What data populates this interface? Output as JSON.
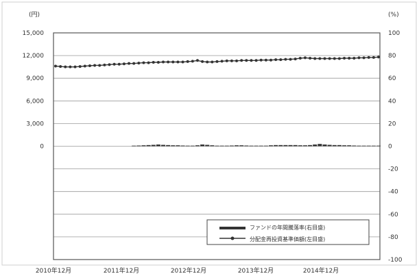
{
  "chart_data": {
    "type": "line",
    "left_axis_unit": "(円)",
    "right_axis_unit": "(%)",
    "left_axis": {
      "ylim": [
        -15000,
        15000
      ],
      "tick_labels": [
        "15,000",
        "12,000",
        "9,000",
        "6,000",
        "3,000",
        "0"
      ]
    },
    "right_axis": {
      "ylim": [
        -100,
        100
      ],
      "tick_labels": [
        "100",
        "80",
        "60",
        "40",
        "20",
        "0",
        "-20",
        "-40",
        "-60",
        "-80",
        "-100"
      ]
    },
    "x_tick_labels": [
      "2010年12月",
      "2011年12月",
      "2012年12月",
      "2013年12月",
      "2014年12月"
    ],
    "grid": true,
    "legend_position": "bottom-right",
    "series": [
      {
        "name": "ファンドの年間騰落率(右目盛)",
        "axis": "right",
        "style": "bar",
        "color": "#333333",
        "values": [
          0,
          0,
          0,
          0,
          0,
          0,
          0,
          0,
          0,
          0,
          0,
          0,
          0,
          0,
          0,
          0,
          0.5,
          0.6,
          0.8,
          1,
          1.2,
          1.5,
          1.2,
          1,
          0.8,
          0.8,
          0.6,
          0.5,
          0.5,
          0.8,
          1.5,
          1.2,
          0.8,
          0.5,
          0.5,
          0.5,
          0.6,
          0.8,
          0.8,
          0.6,
          0.5,
          0.5,
          0.5,
          0.5,
          0.8,
          1,
          1,
          1,
          1,
          1,
          0.8,
          0.8,
          1,
          1.5,
          2,
          1.5,
          1.2,
          1,
          1,
          0.8,
          0.8,
          0.6,
          0.5,
          0.5,
          0.5,
          0.5,
          0.5
        ]
      },
      {
        "name": "分配金再投資基準価額(左目盛)",
        "axis": "left",
        "style": "line-markers",
        "color": "#333333",
        "values": [
          10600,
          10550,
          10500,
          10500,
          10500,
          10550,
          10600,
          10650,
          10700,
          10700,
          10750,
          10800,
          10850,
          10850,
          10900,
          10950,
          10950,
          11000,
          11050,
          11050,
          11100,
          11100,
          11150,
          11150,
          11150,
          11150,
          11150,
          11200,
          11250,
          11350,
          11200,
          11150,
          11150,
          11200,
          11250,
          11300,
          11300,
          11300,
          11350,
          11350,
          11350,
          11350,
          11400,
          11400,
          11400,
          11450,
          11450,
          11500,
          11500,
          11550,
          11650,
          11700,
          11650,
          11600,
          11600,
          11600,
          11600,
          11600,
          11600,
          11650,
          11650,
          11650,
          11700,
          11700,
          11750,
          11750,
          11800
        ]
      }
    ]
  }
}
